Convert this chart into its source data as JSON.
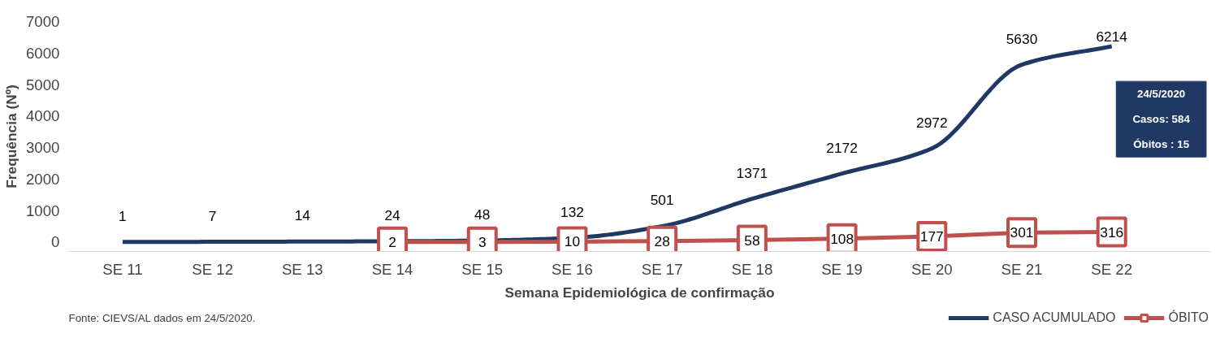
{
  "chart_data": {
    "type": "line",
    "xlabel": "Semana Epidemiológica de confirmação",
    "ylabel": "Frequência (Nº)",
    "categories": [
      "SE 11",
      "SE 12",
      "SE 13",
      "SE 14",
      "SE 15",
      "SE 16",
      "SE 17",
      "SE 18",
      "SE 19",
      "SE 20",
      "SE 21",
      "SE 22"
    ],
    "series": [
      {
        "name": "CASO ACUMULADO",
        "color": "#203864",
        "marker": "none",
        "values": [
          1,
          7,
          14,
          24,
          48,
          132,
          501,
          1371,
          2172,
          2972,
          5630,
          6214
        ]
      },
      {
        "name": "ÓBITO",
        "color": "#c0504d",
        "marker": "square",
        "values": [
          null,
          null,
          null,
          2,
          3,
          10,
          28,
          58,
          108,
          177,
          301,
          316
        ]
      }
    ],
    "ylim": [
      -300,
      7000
    ],
    "yticks": [
      0,
      1000,
      2000,
      3000,
      4000,
      5000,
      6000,
      7000
    ],
    "data_labels": true,
    "grid": false,
    "legend": "bottom right",
    "annotations": [
      "24/5/2020",
      "Casos: 584",
      "Óbitos : 15",
      "Fonte: CIEVS/AL dados em 24/5/2020."
    ]
  }
}
